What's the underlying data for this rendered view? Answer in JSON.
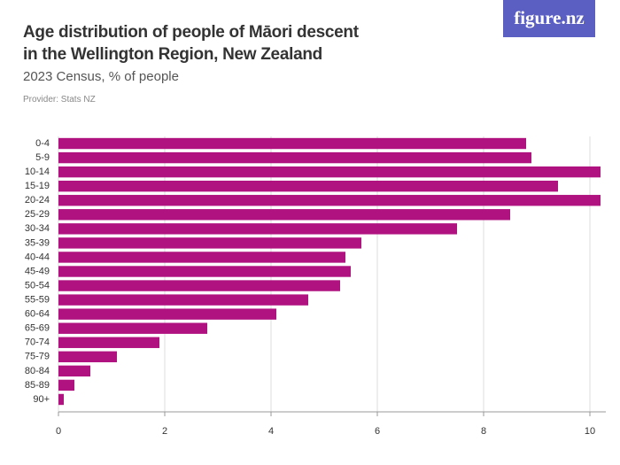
{
  "logo": "figure.nz",
  "chart_data": {
    "type": "hbar",
    "title": "Age distribution of people of Māori descent in the Wellington Region, New Zealand",
    "subtitle": "2023 Census, % of people",
    "provider": "Provider: Stats NZ",
    "categories": [
      "0-4",
      "5-9",
      "10-14",
      "15-19",
      "20-24",
      "25-29",
      "30-34",
      "35-39",
      "40-44",
      "45-49",
      "50-54",
      "55-59",
      "60-64",
      "65-69",
      "70-74",
      "75-79",
      "80-84",
      "85-89",
      "90+"
    ],
    "values": [
      8.8,
      8.9,
      10.2,
      9.4,
      10.2,
      8.5,
      7.5,
      5.7,
      5.4,
      5.5,
      5.3,
      4.7,
      4.1,
      2.8,
      1.9,
      1.1,
      0.6,
      0.3,
      0.1
    ],
    "color": "#b0127f",
    "xlim": [
      0,
      10.3
    ],
    "xticks": [
      0,
      2,
      4,
      6,
      8,
      10
    ],
    "grid": true
  }
}
